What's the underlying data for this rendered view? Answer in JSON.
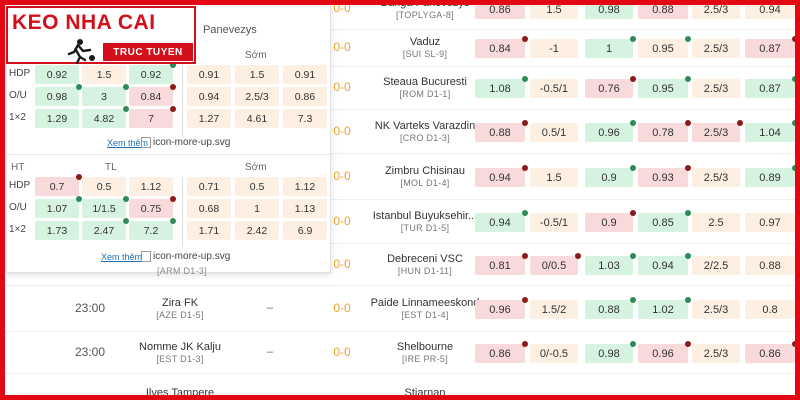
{
  "logo": {
    "title": "KEO NHA CAI",
    "subtitle": "TRUC TUYEN"
  },
  "popup": {
    "title": "Panevezys",
    "section1": {
      "header_right": "Sớm",
      "rows": [
        {
          "label": "HDP",
          "left": [
            "0.92",
            "1.5",
            "0.92"
          ],
          "right": [
            "0.91",
            "1.5",
            "0.91"
          ]
        },
        {
          "label": "O/U",
          "left": [
            "0.98",
            "3",
            "0.84"
          ],
          "right": [
            "0.94",
            "2.5/3",
            "0.86"
          ]
        },
        {
          "label": "1×2",
          "left": [
            "1.29",
            "4.82",
            "7"
          ],
          "right": [
            "1.27",
            "4.61",
            "7.3"
          ]
        }
      ],
      "more_link": "Xem thêm",
      "more_img": "icon-more-up.svg"
    },
    "section2": {
      "header_ht": "HT",
      "header_tl": "TL",
      "header_right": "Sớm",
      "rows": [
        {
          "label": "HDP",
          "left": [
            "0.7",
            "0.5",
            "1.12"
          ],
          "right": [
            "0.71",
            "0.5",
            "1.12"
          ]
        },
        {
          "label": "O/U",
          "left": [
            "1.07",
            "1/1.5",
            "0.75"
          ],
          "right": [
            "0.68",
            "1",
            "1.13"
          ]
        },
        {
          "label": "1×2",
          "left": [
            "1.73",
            "2.47",
            "7.2"
          ],
          "right": [
            "1.71",
            "2.42",
            "6.9"
          ]
        }
      ],
      "more_link": "Xem thêm",
      "more_img": "icon-more-up.svg"
    },
    "partial_league": "[ARM D1-3]"
  },
  "rows": [
    {
      "time": "",
      "home": "",
      "home_league": "",
      "dash": "",
      "score": "0-0",
      "away": "Banga Panevezys",
      "away_league": "[TOPLYGA-8]",
      "odds": [
        "0.86",
        "1.5",
        "0.98",
        "0.88",
        "2.5/3",
        "0.94"
      ]
    },
    {
      "time": "",
      "home": "",
      "home_league": "",
      "dash": "",
      "score": "0-0",
      "away": "Vaduz",
      "away_league": "[SUI SL-9]",
      "odds": [
        "0.84",
        "-1",
        "1",
        "0.95",
        "2.5/3",
        "0.87"
      ]
    },
    {
      "time": "",
      "home": "",
      "home_league": "",
      "dash": "",
      "score": "0-0",
      "away": "Steaua Bucuresti",
      "away_league": "[ROM D1-1]",
      "odds": [
        "1.08",
        "-0.5/1",
        "0.76",
        "0.95",
        "2.5/3",
        "0.87"
      ]
    },
    {
      "time": "",
      "home": "",
      "home_league": "",
      "dash": "",
      "score": "0-0",
      "away": "NK Varteks Varazdin",
      "away_league": "[CRO D1-3]",
      "odds": [
        "0.88",
        "0.5/1",
        "0.96",
        "0.78",
        "2.5/3",
        "1.04"
      ]
    },
    {
      "time": "",
      "home": "",
      "home_league": "",
      "dash": "",
      "score": "0-0",
      "away": "Zimbru Chisinau",
      "away_league": "[MOL D1-4]",
      "odds": [
        "0.94",
        "1.5",
        "0.9",
        "0.93",
        "2.5/3",
        "0.89"
      ]
    },
    {
      "time": "",
      "home": "",
      "home_league": "",
      "dash": "",
      "score": "0-0",
      "away": "Istanbul Buyuksehir...",
      "away_league": "[TUR D1-5]",
      "odds": [
        "0.94",
        "-0.5/1",
        "0.9",
        "0.85",
        "2.5",
        "0.97"
      ]
    },
    {
      "time": "",
      "home": "",
      "home_league": "",
      "dash": "",
      "score": "0-0",
      "away": "Debreceni VSC",
      "away_league": "[HUN D1-11]",
      "odds": [
        "0.81",
        "0/0.5",
        "1.03",
        "0.94",
        "2/2.5",
        "0.88"
      ]
    },
    {
      "time": "23:00",
      "home": "Zira FK",
      "home_league": "[AZE D1-5]",
      "dash": "–",
      "score": "0-0",
      "away": "Paide Linnameeskond",
      "away_league": "[EST D1-4]",
      "odds": [
        "0.96",
        "1.5/2",
        "0.88",
        "1.02",
        "2.5/3",
        "0.8"
      ]
    },
    {
      "time": "23:00",
      "home": "Nomme JK Kalju",
      "home_league": "[EST D1-3]",
      "dash": "–",
      "score": "0-0",
      "away": "Shelbourne",
      "away_league": "[IRE PR-5]",
      "odds": [
        "0.86",
        "0/-0.5",
        "0.98",
        "0.96",
        "2.5/3",
        "0.86"
      ]
    },
    {
      "time": "",
      "home": "Ilves Tampere",
      "home_league": "",
      "dash": "",
      "score": "",
      "away": "Stjarnan",
      "away_league": "",
      "odds": [
        "",
        "",
        "",
        "",
        "",
        ""
      ]
    }
  ]
}
